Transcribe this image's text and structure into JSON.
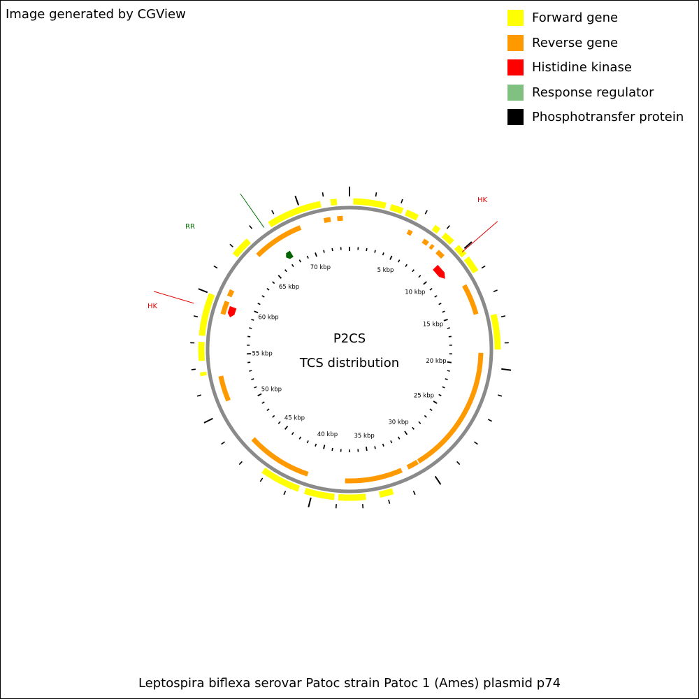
{
  "credit": "Image generated by CGView",
  "legend": [
    {
      "label": "Forward gene",
      "color": "#ffff00"
    },
    {
      "label": "Reverse gene",
      "color": "#ff9900"
    },
    {
      "label": "Histidine kinase",
      "color": "#ff0000"
    },
    {
      "label": "Response regulator",
      "color": "#80c080"
    },
    {
      "label": "Phosphotransfer protein",
      "color": "#000000"
    }
  ],
  "center": {
    "line1": "P2CS",
    "line2": "TCS distribution"
  },
  "footer": "Leptospira biflexa serovar Patoc strain Patoc 1 (Ames) plasmid p74",
  "map": {
    "sequence_length_kbp": 74,
    "tick_labels": [
      "5 kbp",
      "10 kbp",
      "15 kbp",
      "20 kbp",
      "25 kbp",
      "30 kbp",
      "35 kbp",
      "40 kbp",
      "45 kbp",
      "50 kbp",
      "55 kbp",
      "60 kbp",
      "65 kbp",
      "70 kbp"
    ],
    "forward_genes_kbp": [
      [
        0.3,
        2.9
      ],
      [
        3.3,
        4.3
      ],
      [
        4.6,
        5.6
      ],
      [
        7.1,
        7.6
      ],
      [
        8.1,
        9.0
      ],
      [
        9.5,
        10.4
      ],
      [
        10.7,
        12.0
      ],
      [
        15.7,
        18.5
      ],
      [
        33.5,
        34.6
      ],
      [
        35.7,
        37.9
      ],
      [
        38.2,
        40.6
      ],
      [
        41.1,
        44.3
      ],
      [
        53.4,
        53.7
      ],
      [
        54.6,
        56.1
      ],
      [
        56.6,
        60.0
      ],
      [
        63.6,
        65.2
      ],
      [
        67.3,
        71.7
      ],
      [
        72.5,
        73.0
      ]
    ],
    "reverse_genes_kbp": [
      [
        5.4,
        5.8
      ],
      [
        7.0,
        7.5
      ],
      [
        7.8,
        8.1
      ],
      [
        8.6,
        9.3
      ],
      [
        12.5,
        15.3
      ],
      [
        18.8,
        30.5
      ],
      [
        30.6,
        31.6
      ],
      [
        32.2,
        37.4
      ],
      [
        40.8,
        46.0
      ],
      [
        46.0,
        46.7
      ],
      [
        50.8,
        53.1
      ],
      [
        58.7,
        59.9
      ],
      [
        60.4,
        61.0
      ],
      [
        64.9,
        69.5
      ],
      [
        71.7,
        72.3
      ],
      [
        72.9,
        73.4
      ]
    ],
    "histidine_kinases_kbp": [
      [
        9.5,
        11.0
      ],
      [
        58.6,
        59.6
      ]
    ],
    "response_regulators_kbp": [
      [
        66.9,
        67.6
      ]
    ],
    "callouts": [
      {
        "text": "HK",
        "color": "#e00000"
      },
      {
        "text": "RR",
        "color": "#007000"
      },
      {
        "text": "HK",
        "color": "#e00000"
      }
    ]
  }
}
